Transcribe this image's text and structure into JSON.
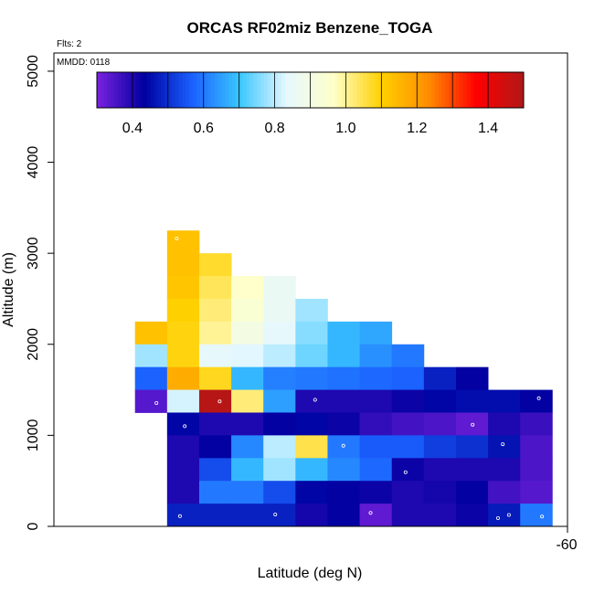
{
  "chart_data": {
    "type": "heatmap",
    "title": "ORCAS RF02miz Benzene_TOGA",
    "note_flights": "Flts: 2",
    "note_date": "MMDD: 0118",
    "xlabel": "Latitude (deg N)",
    "ylabel": "Altitude (m)",
    "x_tick_labels": [
      "-60"
    ],
    "y_tick_labels": [
      "0",
      "1000",
      "2000",
      "3000",
      "4000",
      "5000"
    ],
    "y_ticks": [
      0,
      1000,
      2000,
      3000,
      4000,
      5000
    ],
    "ylim": [
      0,
      5200
    ],
    "colorbar": {
      "range": [
        0.3,
        1.5
      ],
      "tick_values": [
        0.4,
        0.6,
        0.8,
        1.0,
        1.2,
        1.4
      ],
      "tick_labels": [
        "0.4",
        "0.6",
        "0.8",
        "1.0",
        "1.2",
        "1.4"
      ],
      "colors": [
        "#7a22e0",
        "#0000a0",
        "#1a5fff",
        "#39c6ff",
        "#e6f8ff",
        "#ffffc8",
        "#ffd000",
        "#ff8c00",
        "#ff0000",
        "#b01818"
      ]
    },
    "grid": {
      "n_cols": 16,
      "row_height_m": 250,
      "cells": [
        {
          "row": 12,
          "col": 4,
          "v": 1.13
        },
        {
          "row": 11,
          "col": 4,
          "v": 1.13
        },
        {
          "row": 11,
          "col": 5,
          "v": 1.07
        },
        {
          "row": 10,
          "col": 4,
          "v": 1.12
        },
        {
          "row": 10,
          "col": 5,
          "v": 1.04
        },
        {
          "row": 10,
          "col": 6,
          "v": 0.96
        },
        {
          "row": 10,
          "col": 7,
          "v": 0.86
        },
        {
          "row": 9,
          "col": 4,
          "v": 1.1
        },
        {
          "row": 9,
          "col": 5,
          "v": 1.02
        },
        {
          "row": 9,
          "col": 6,
          "v": 0.94
        },
        {
          "row": 9,
          "col": 7,
          "v": 0.86
        },
        {
          "row": 9,
          "col": 8,
          "v": 0.78
        },
        {
          "row": 8,
          "col": 3,
          "v": 1.13
        },
        {
          "row": 8,
          "col": 4,
          "v": 1.09
        },
        {
          "row": 8,
          "col": 5,
          "v": 1.0
        },
        {
          "row": 8,
          "col": 6,
          "v": 0.9
        },
        {
          "row": 8,
          "col": 7,
          "v": 0.84
        },
        {
          "row": 8,
          "col": 8,
          "v": 0.76
        },
        {
          "row": 8,
          "col": 9,
          "v": 0.68
        },
        {
          "row": 8,
          "col": 10,
          "v": 0.66
        },
        {
          "row": 7,
          "col": 3,
          "v": 0.78
        },
        {
          "row": 7,
          "col": 4,
          "v": 1.09
        },
        {
          "row": 7,
          "col": 5,
          "v": 0.84
        },
        {
          "row": 7,
          "col": 6,
          "v": 0.83
        },
        {
          "row": 7,
          "col": 7,
          "v": 0.8
        },
        {
          "row": 7,
          "col": 8,
          "v": 0.74
        },
        {
          "row": 7,
          "col": 9,
          "v": 0.68
        },
        {
          "row": 7,
          "col": 10,
          "v": 0.63
        },
        {
          "row": 7,
          "col": 11,
          "v": 0.6
        },
        {
          "row": 6,
          "col": 3,
          "v": 0.57
        },
        {
          "row": 6,
          "col": 4,
          "v": 1.17
        },
        {
          "row": 6,
          "col": 5,
          "v": 1.08
        },
        {
          "row": 6,
          "col": 6,
          "v": 0.68
        },
        {
          "row": 6,
          "col": 7,
          "v": 0.61
        },
        {
          "row": 6,
          "col": 8,
          "v": 0.6
        },
        {
          "row": 6,
          "col": 9,
          "v": 0.59
        },
        {
          "row": 6,
          "col": 10,
          "v": 0.58
        },
        {
          "row": 6,
          "col": 11,
          "v": 0.57
        },
        {
          "row": 6,
          "col": 12,
          "v": 0.48
        },
        {
          "row": 6,
          "col": 13,
          "v": 0.43
        },
        {
          "row": 5,
          "col": 3,
          "v": 0.34
        },
        {
          "row": 5,
          "col": 4,
          "v": 0.82
        },
        {
          "row": 5,
          "col": 5,
          "v": 1.49
        },
        {
          "row": 5,
          "col": 6,
          "v": 1.02
        },
        {
          "row": 5,
          "col": 7,
          "v": 0.65
        },
        {
          "row": 5,
          "col": 8,
          "v": 0.4
        },
        {
          "row": 5,
          "col": 9,
          "v": 0.4
        },
        {
          "row": 5,
          "col": 10,
          "v": 0.4
        },
        {
          "row": 5,
          "col": 11,
          "v": 0.42
        },
        {
          "row": 5,
          "col": 12,
          "v": 0.44
        },
        {
          "row": 5,
          "col": 13,
          "v": 0.45
        },
        {
          "row": 5,
          "col": 14,
          "v": 0.45
        },
        {
          "row": 5,
          "col": 15,
          "v": 0.43
        },
        {
          "row": 4,
          "col": 4,
          "v": 0.44
        },
        {
          "row": 4,
          "col": 5,
          "v": 0.4
        },
        {
          "row": 4,
          "col": 6,
          "v": 0.4
        },
        {
          "row": 4,
          "col": 7,
          "v": 0.43
        },
        {
          "row": 4,
          "col": 8,
          "v": 0.44
        },
        {
          "row": 4,
          "col": 9,
          "v": 0.42
        },
        {
          "row": 4,
          "col": 10,
          "v": 0.38
        },
        {
          "row": 4,
          "col": 11,
          "v": 0.36
        },
        {
          "row": 4,
          "col": 12,
          "v": 0.35
        },
        {
          "row": 4,
          "col": 13,
          "v": 0.33
        },
        {
          "row": 4,
          "col": 14,
          "v": 0.4
        },
        {
          "row": 4,
          "col": 15,
          "v": 0.37
        },
        {
          "row": 3,
          "col": 4,
          "v": 0.4
        },
        {
          "row": 3,
          "col": 5,
          "v": 0.43
        },
        {
          "row": 3,
          "col": 6,
          "v": 0.62
        },
        {
          "row": 3,
          "col": 7,
          "v": 0.8
        },
        {
          "row": 3,
          "col": 8,
          "v": 1.05
        },
        {
          "row": 3,
          "col": 9,
          "v": 0.6
        },
        {
          "row": 3,
          "col": 10,
          "v": 0.56
        },
        {
          "row": 3,
          "col": 11,
          "v": 0.56
        },
        {
          "row": 3,
          "col": 12,
          "v": 0.52
        },
        {
          "row": 3,
          "col": 13,
          "v": 0.5
        },
        {
          "row": 3,
          "col": 14,
          "v": 0.46
        },
        {
          "row": 3,
          "col": 15,
          "v": 0.35
        },
        {
          "row": 2,
          "col": 4,
          "v": 0.4
        },
        {
          "row": 2,
          "col": 5,
          "v": 0.54
        },
        {
          "row": 2,
          "col": 6,
          "v": 0.68
        },
        {
          "row": 2,
          "col": 7,
          "v": 0.78
        },
        {
          "row": 2,
          "col": 8,
          "v": 0.68
        },
        {
          "row": 2,
          "col": 9,
          "v": 0.62
        },
        {
          "row": 2,
          "col": 10,
          "v": 0.58
        },
        {
          "row": 2,
          "col": 11,
          "v": 0.42
        },
        {
          "row": 2,
          "col": 12,
          "v": 0.4
        },
        {
          "row": 2,
          "col": 13,
          "v": 0.4
        },
        {
          "row": 2,
          "col": 14,
          "v": 0.4
        },
        {
          "row": 2,
          "col": 15,
          "v": 0.35
        },
        {
          "row": 1,
          "col": 4,
          "v": 0.4
        },
        {
          "row": 1,
          "col": 5,
          "v": 0.6
        },
        {
          "row": 1,
          "col": 6,
          "v": 0.6
        },
        {
          "row": 1,
          "col": 7,
          "v": 0.54
        },
        {
          "row": 1,
          "col": 8,
          "v": 0.44
        },
        {
          "row": 1,
          "col": 9,
          "v": 0.43
        },
        {
          "row": 1,
          "col": 10,
          "v": 0.42
        },
        {
          "row": 1,
          "col": 11,
          "v": 0.4
        },
        {
          "row": 1,
          "col": 12,
          "v": 0.41
        },
        {
          "row": 1,
          "col": 13,
          "v": 0.43
        },
        {
          "row": 1,
          "col": 14,
          "v": 0.36
        },
        {
          "row": 1,
          "col": 15,
          "v": 0.34
        },
        {
          "row": 0,
          "col": 4,
          "v": 0.48
        },
        {
          "row": 0,
          "col": 5,
          "v": 0.48
        },
        {
          "row": 0,
          "col": 6,
          "v": 0.48
        },
        {
          "row": 0,
          "col": 7,
          "v": 0.48
        },
        {
          "row": 0,
          "col": 8,
          "v": 0.41
        },
        {
          "row": 0,
          "col": 9,
          "v": 0.43
        },
        {
          "row": 0,
          "col": 10,
          "v": 0.33
        },
        {
          "row": 0,
          "col": 11,
          "v": 0.4
        },
        {
          "row": 0,
          "col": 12,
          "v": 0.4
        },
        {
          "row": 0,
          "col": 13,
          "v": 0.42
        },
        {
          "row": 0,
          "col": 14,
          "v": 0.47
        },
        {
          "row": 0,
          "col": 15,
          "v": 0.6
        }
      ],
      "markers": [
        {
          "row": 12,
          "col": 4
        },
        {
          "row": 5,
          "col": 3
        },
        {
          "row": 5,
          "col": 5
        },
        {
          "row": 5,
          "col": 8
        },
        {
          "row": 5,
          "col": 15
        },
        {
          "row": 4,
          "col": 4
        },
        {
          "row": 4,
          "col": 13
        },
        {
          "row": 3,
          "col": 9
        },
        {
          "row": 3,
          "col": 14
        },
        {
          "row": 2,
          "col": 11
        },
        {
          "row": 0,
          "col": 4
        },
        {
          "row": 0,
          "col": 7
        },
        {
          "row": 0,
          "col": 10
        },
        {
          "row": 0,
          "col": 14
        },
        {
          "row": 0,
          "col": 15
        },
        {
          "row": 0,
          "col": 14
        }
      ]
    }
  }
}
